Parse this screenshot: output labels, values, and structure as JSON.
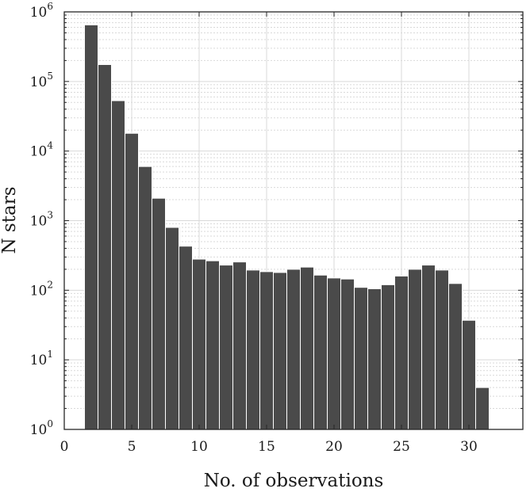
{
  "chart_data": {
    "type": "bar",
    "xlabel": "No. of observations",
    "ylabel": "N stars",
    "x": [
      2,
      3,
      4,
      5,
      6,
      7,
      8,
      9,
      10,
      11,
      12,
      13,
      14,
      15,
      16,
      17,
      18,
      19,
      20,
      21,
      22,
      23,
      24,
      25,
      26,
      27,
      28,
      29,
      30,
      31
    ],
    "values": [
      650000,
      175000,
      53000,
      18000,
      6000,
      2100,
      800,
      430,
      280,
      265,
      230,
      255,
      195,
      185,
      180,
      200,
      215,
      165,
      150,
      145,
      110,
      105,
      120,
      160,
      200,
      230,
      195,
      125,
      37,
      4
    ],
    "xlim": [
      0,
      34
    ],
    "ylim": [
      1,
      1000000
    ],
    "yscale": "log",
    "xticks": [
      0,
      5,
      10,
      15,
      20,
      25,
      30
    ],
    "xtick_labels": [
      "0",
      "5",
      "10",
      "15",
      "20",
      "25",
      "30"
    ],
    "yticks": [
      1,
      10,
      100,
      1000,
      10000,
      100000,
      1000000
    ],
    "ytick_labels": [
      {
        "base": "10",
        "exp": "0"
      },
      {
        "base": "10",
        "exp": "1"
      },
      {
        "base": "10",
        "exp": "2"
      },
      {
        "base": "10",
        "exp": "3"
      },
      {
        "base": "10",
        "exp": "4"
      },
      {
        "base": "10",
        "exp": "5"
      },
      {
        "base": "10",
        "exp": "6"
      }
    ],
    "grid": true,
    "bar_color": "#4a4a4a",
    "grid_color": "#d9d9d9"
  }
}
